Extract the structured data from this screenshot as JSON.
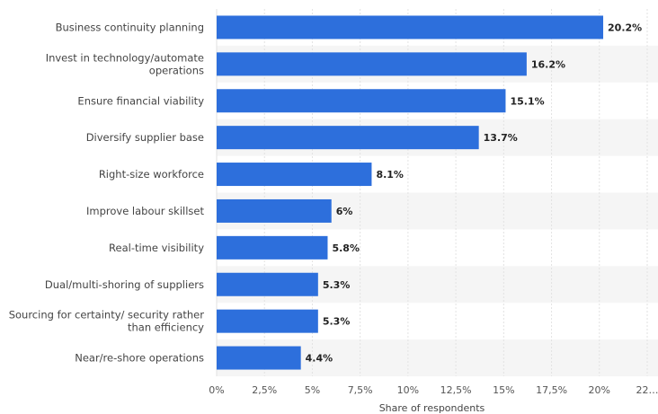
{
  "chart_data": {
    "type": "bar",
    "orientation": "horizontal",
    "categories": [
      [
        "Business continuity planning"
      ],
      [
        "Invest in technology/automate",
        "operations"
      ],
      [
        "Ensure financial viability"
      ],
      [
        "Diversify supplier base"
      ],
      [
        "Right-size workforce"
      ],
      [
        "Improve labour skillset"
      ],
      [
        "Real-time visibility"
      ],
      [
        "Dual/multi-shoring of suppliers"
      ],
      [
        "Sourcing for certainty/ security rather",
        "than efficiency"
      ],
      [
        "Near/re-shore operations"
      ]
    ],
    "values": [
      20.2,
      16.2,
      15.1,
      13.7,
      8.1,
      6,
      5.8,
      5.3,
      5.3,
      4.4
    ],
    "value_labels": [
      "20.2%",
      "16.2%",
      "15.1%",
      "13.7%",
      "8.1%",
      "6%",
      "5.8%",
      "5.3%",
      "5.3%",
      "4.4%"
    ],
    "xticks": [
      0,
      2.5,
      5,
      7.5,
      10,
      12.5,
      15,
      17.5,
      20,
      22.5
    ],
    "xtick_labels": [
      "0%",
      "2,5%",
      "5%",
      "7,5%",
      "10%",
      "12,5%",
      "15%",
      "17,5%",
      "20%",
      "22…"
    ],
    "xlim": [
      0,
      22.5
    ],
    "xlabel": "Share of respondents",
    "title": "",
    "grid": true,
    "bar_color": "#2d6fdc",
    "band_color": "#f5f5f5"
  }
}
